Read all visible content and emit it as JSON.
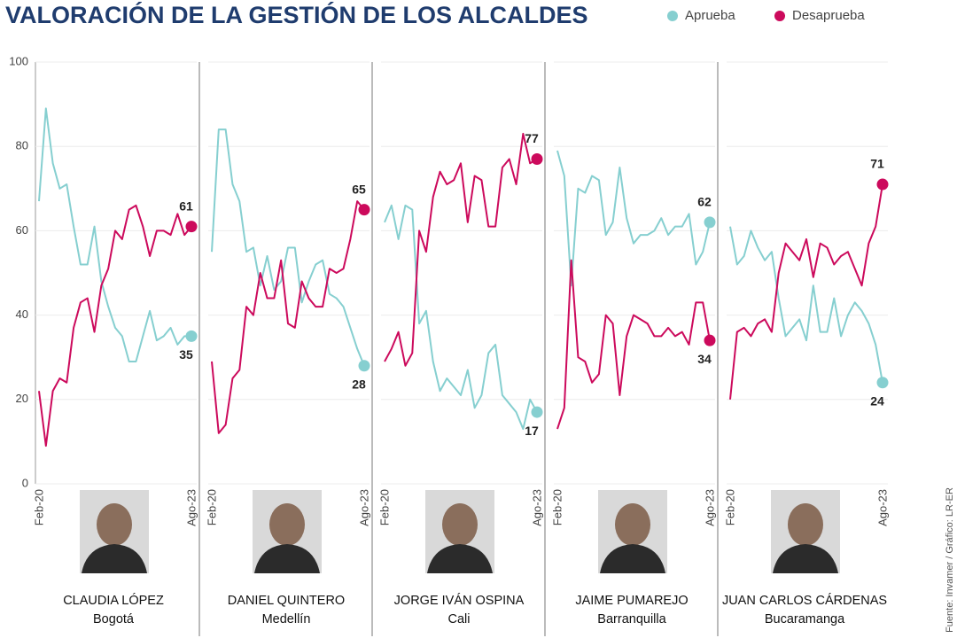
{
  "title": "VALORACIÓN DE LA GESTIÓN DE LOS ALCALDES",
  "source": "Fuente: Invamer / Gráfico: LR-ER",
  "legend": [
    {
      "name": "Aprueba",
      "color": "#86cfd0"
    },
    {
      "name": "Desaprueba",
      "color": "#cc0a5c"
    }
  ],
  "chart_data": [
    {
      "type": "line",
      "title": "CLAUDIA LÓPEZ",
      "subtitle": "Bogotá",
      "categories": [
        "Feb-20",
        null,
        null,
        null,
        null,
        null,
        null,
        null,
        null,
        null,
        null,
        null,
        null,
        null,
        null,
        null,
        null,
        null,
        null,
        null,
        null,
        null,
        "Ago-23"
      ],
      "ylim": [
        0,
        100
      ],
      "yticks": [
        0,
        20,
        40,
        60,
        80,
        100
      ],
      "grid": true,
      "series": [
        {
          "values": [
            67,
            89,
            76,
            70,
            71,
            61,
            52,
            52,
            61,
            48,
            42,
            37,
            35,
            29,
            29,
            35,
            41,
            34,
            35,
            37,
            33,
            35,
            35
          ]
        },
        {
          "values": [
            22,
            9,
            22,
            25,
            24,
            37,
            43,
            44,
            36,
            47,
            51,
            60,
            58,
            65,
            66,
            61,
            54,
            60,
            60,
            59,
            64,
            59,
            61
          ]
        }
      ]
    },
    {
      "type": "line",
      "title": "DANIEL QUINTERO",
      "subtitle": "Medellín",
      "categories": [
        "Feb-20",
        null,
        null,
        null,
        null,
        null,
        null,
        null,
        null,
        null,
        null,
        null,
        null,
        null,
        null,
        null,
        null,
        null,
        null,
        null,
        null,
        null,
        "Ago-23"
      ],
      "ylim": [
        0,
        100
      ],
      "yticks": [
        0,
        20,
        40,
        60,
        80,
        100
      ],
      "grid": true,
      "series": [
        {
          "values": [
            55,
            84,
            84,
            71,
            67,
            55,
            56,
            47,
            54,
            46,
            48,
            56,
            56,
            43,
            48,
            52,
            53,
            45,
            44,
            42,
            37,
            32,
            28
          ]
        },
        {
          "values": [
            29,
            12,
            14,
            25,
            27,
            42,
            40,
            50,
            44,
            44,
            53,
            38,
            37,
            48,
            44,
            42,
            42,
            51,
            50,
            51,
            58,
            67,
            65
          ]
        }
      ]
    },
    {
      "type": "line",
      "title": "JORGE IVÁN OSPINA",
      "subtitle": "Cali",
      "categories": [
        "Feb-20",
        null,
        null,
        null,
        null,
        null,
        null,
        null,
        null,
        null,
        null,
        null,
        null,
        null,
        null,
        null,
        null,
        null,
        null,
        null,
        null,
        null,
        "Ago-23"
      ],
      "ylim": [
        0,
        100
      ],
      "yticks": [
        0,
        20,
        40,
        60,
        80,
        100
      ],
      "grid": true,
      "series": [
        {
          "values": [
            62,
            66,
            58,
            66,
            65,
            38,
            41,
            29,
            22,
            25,
            23,
            21,
            27,
            18,
            21,
            31,
            33,
            21,
            19,
            17,
            13,
            20,
            17
          ]
        },
        {
          "values": [
            29,
            32,
            36,
            28,
            31,
            60,
            55,
            68,
            74,
            71,
            72,
            76,
            62,
            73,
            72,
            61,
            61,
            75,
            77,
            71,
            83,
            76,
            77
          ]
        }
      ]
    },
    {
      "type": "line",
      "title": "JAIME PUMAREJO",
      "subtitle": "Barranquilla",
      "categories": [
        "Feb-20",
        null,
        null,
        null,
        null,
        null,
        null,
        null,
        null,
        null,
        null,
        null,
        null,
        null,
        null,
        null,
        null,
        null,
        null,
        null,
        null,
        null,
        "Ago-23"
      ],
      "ylim": [
        0,
        100
      ],
      "yticks": [
        0,
        20,
        40,
        60,
        80,
        100
      ],
      "grid": true,
      "series": [
        {
          "values": [
            79,
            73,
            47,
            70,
            69,
            73,
            72,
            59,
            62,
            75,
            63,
            57,
            59,
            59,
            60,
            63,
            59,
            61,
            61,
            64,
            52,
            55,
            62
          ]
        },
        {
          "values": [
            13,
            18,
            53,
            30,
            29,
            24,
            26,
            40,
            38,
            21,
            35,
            40,
            39,
            38,
            35,
            35,
            37,
            35,
            36,
            33,
            43,
            43,
            34
          ]
        }
      ]
    },
    {
      "type": "line",
      "title": "JUAN CARLOS CÁRDENAS",
      "subtitle": "Bucaramanga",
      "categories": [
        "Feb-20",
        null,
        null,
        null,
        null,
        null,
        null,
        null,
        null,
        null,
        null,
        null,
        null,
        null,
        null,
        null,
        null,
        null,
        null,
        null,
        null,
        null,
        "Ago-23"
      ],
      "ylim": [
        0,
        100
      ],
      "yticks": [
        0,
        20,
        40,
        60,
        80,
        100
      ],
      "grid": true,
      "series": [
        {
          "values": [
            61,
            52,
            54,
            60,
            56,
            53,
            55,
            44,
            35,
            37,
            39,
            34,
            47,
            36,
            36,
            44,
            35,
            40,
            43,
            41,
            38,
            33,
            24
          ]
        },
        {
          "values": [
            20,
            36,
            37,
            35,
            38,
            39,
            36,
            50,
            57,
            55,
            53,
            58,
            49,
            57,
            56,
            52,
            54,
            55,
            51,
            47,
            57,
            61,
            71
          ]
        }
      ]
    }
  ]
}
